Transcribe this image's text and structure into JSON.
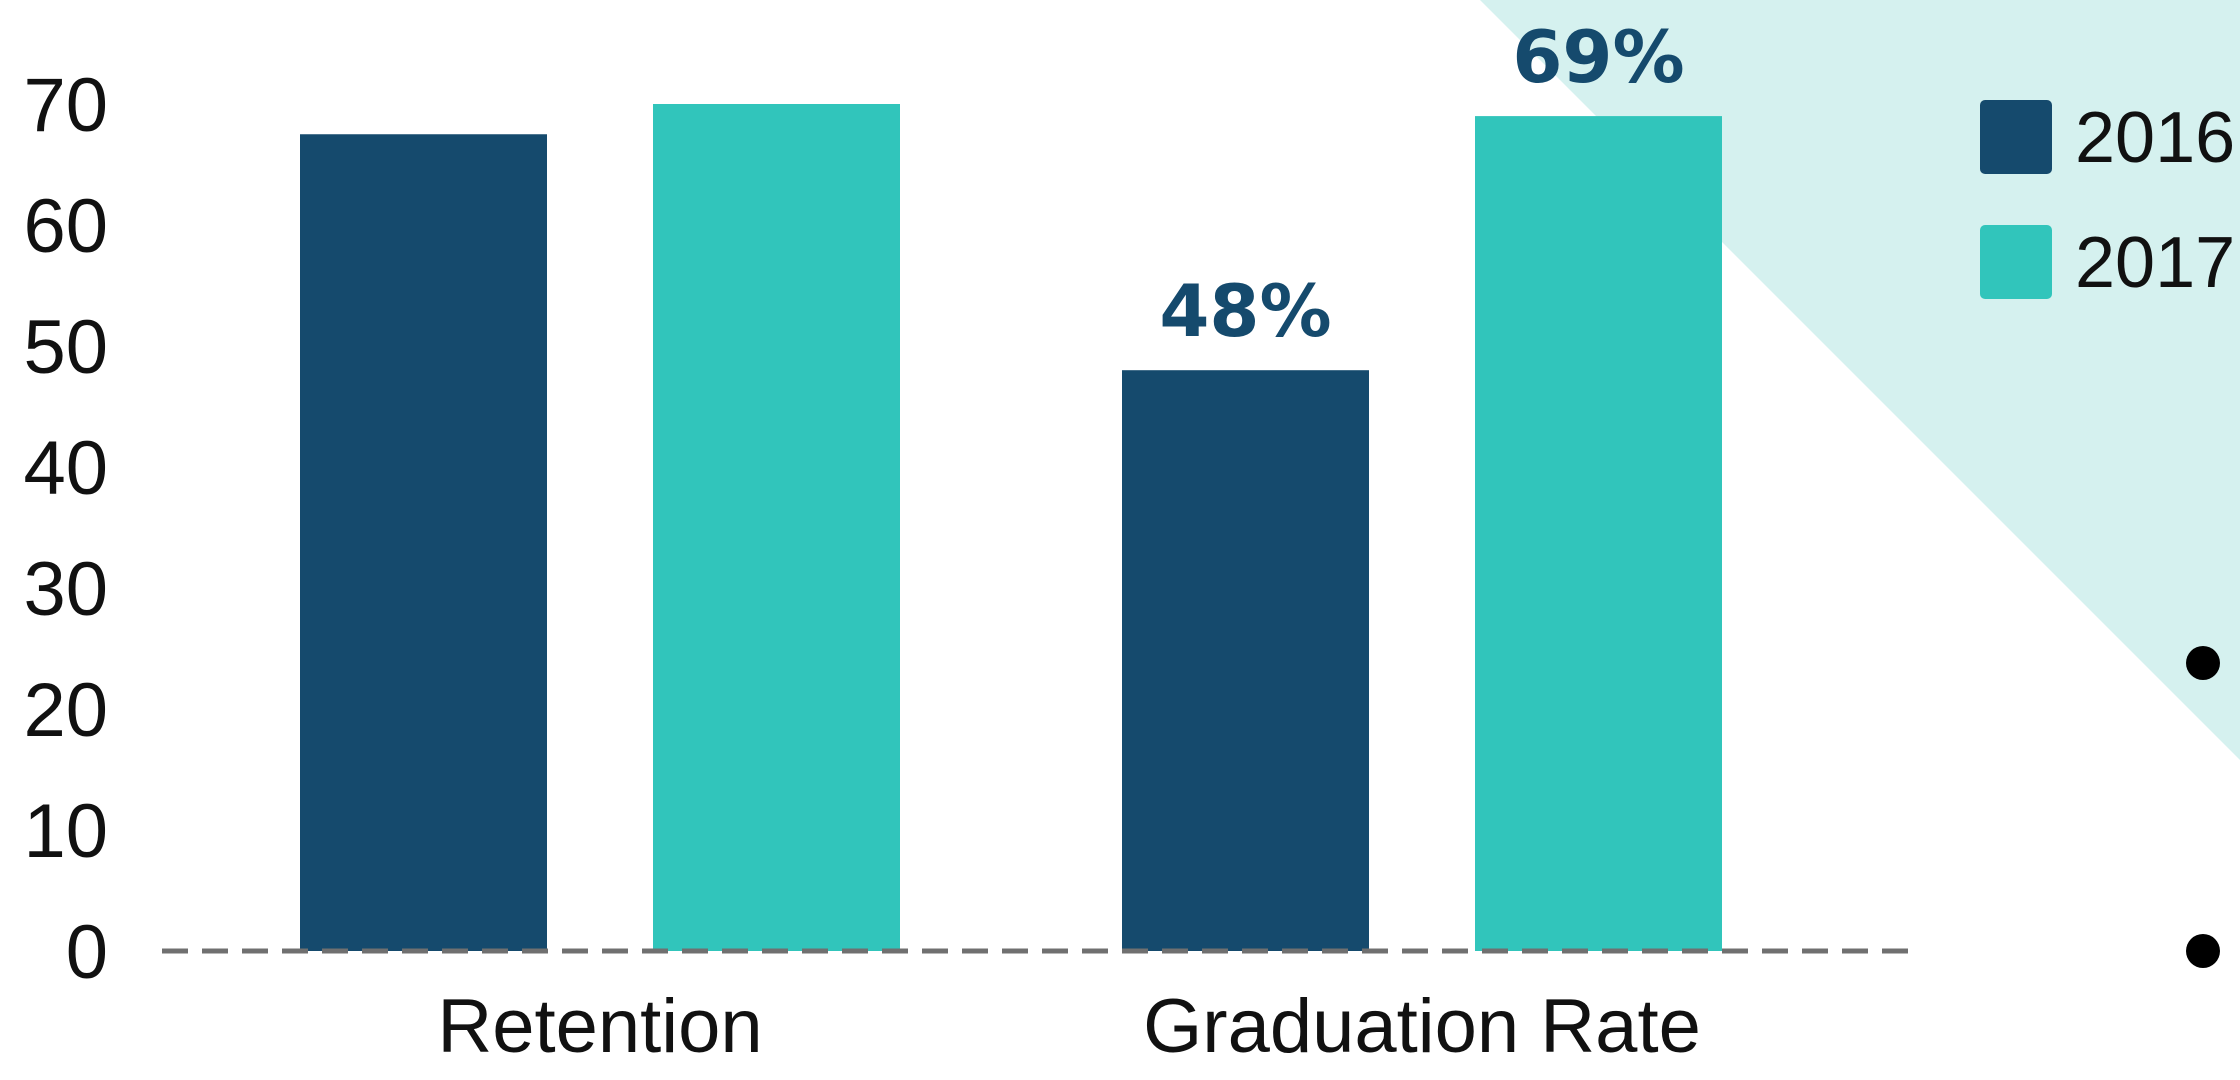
{
  "chart_data": {
    "type": "bar",
    "categories": [
      "Retention",
      "Graduation Rate"
    ],
    "series": [
      {
        "name": "2016",
        "values": [
          67.5,
          48
        ],
        "color": "#154a6d",
        "data_labels": [
          null,
          "48%"
        ]
      },
      {
        "name": "2017",
        "values": [
          70,
          69
        ],
        "color": "#31c5bb",
        "data_labels": [
          null,
          "69%"
        ]
      }
    ],
    "y_ticks": [
      0,
      10,
      20,
      30,
      40,
      50,
      60,
      70
    ],
    "ylim": [
      0,
      70
    ],
    "baseline": "dashed",
    "grid": false,
    "legend_position": "top-right",
    "label_color": "#154a6d",
    "background_accent_color": "#d5f1ef",
    "bullet_color": "#000000"
  }
}
